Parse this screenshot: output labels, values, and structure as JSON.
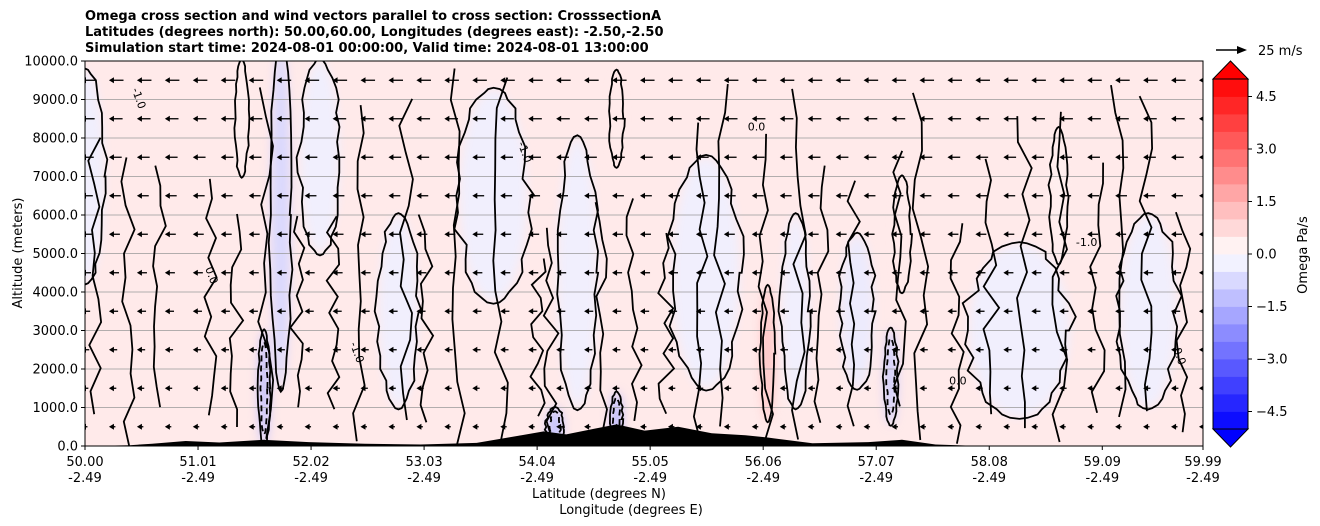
{
  "chart_data": {
    "type": "contour",
    "title_lines": [
      "Omega cross section and wind vectors parallel to cross section: CrosssectionA",
      "Latitudes (degrees north): 50.00,60.00, Longitudes (degrees east): -2.50,-2.50",
      "Simulation start time: 2024-08-01 00:00:00, Valid time: 2024-08-01 13:00:00"
    ],
    "xlabel_lat": "Latitude (degrees N)",
    "xlabel_lon": "Longitude (degrees E)",
    "ylabel": "Altitude (meters)",
    "xlim": [
      50.0,
      59.99
    ],
    "ylim": [
      0,
      10000
    ],
    "x_ticks": [
      {
        "lat": "50.00",
        "lon": "-2.49"
      },
      {
        "lat": "51.01",
        "lon": "-2.49"
      },
      {
        "lat": "52.02",
        "lon": "-2.49"
      },
      {
        "lat": "53.03",
        "lon": "-2.49"
      },
      {
        "lat": "54.04",
        "lon": "-2.49"
      },
      {
        "lat": "55.05",
        "lon": "-2.49"
      },
      {
        "lat": "56.06",
        "lon": "-2.49"
      },
      {
        "lat": "57.07",
        "lon": "-2.49"
      },
      {
        "lat": "58.08",
        "lon": "-2.49"
      },
      {
        "lat": "59.09",
        "lon": "-2.49"
      },
      {
        "lat": "59.99",
        "lon": "-2.49"
      }
    ],
    "y_ticks": [
      "0.0",
      "1000.0",
      "2000.0",
      "3000.0",
      "4000.0",
      "5000.0",
      "6000.0",
      "7000.0",
      "8000.0",
      "9000.0",
      "10000.0"
    ],
    "y_grid": [
      0,
      1000,
      2000,
      3000,
      4000,
      5000,
      6000,
      7000,
      8000,
      9000,
      10000
    ],
    "colorbar": {
      "label": "Omega Pa/s",
      "range": [
        -5.0,
        5.0
      ],
      "levels": 20,
      "tick_values": [
        -4.5,
        -3.0,
        -1.5,
        0.0,
        1.5,
        3.0,
        4.5
      ],
      "tick_labels": [
        "−4.5",
        "−3.0",
        "−1.5",
        "0.0",
        "1.5",
        "3.0",
        "4.5"
      ],
      "extend": "both",
      "low_color": "#0000ff",
      "mid_color": "#ffffff",
      "high_color": "#ff0000"
    },
    "quiver_key": {
      "value": 25,
      "label": "25 m/s"
    },
    "contour_labels": [
      "0.0",
      "-1.0",
      "-1.0",
      "0.0"
    ],
    "shaded_blobs": [
      {
        "lat": 50.0,
        "alt": 7000,
        "w_deg": 0.35,
        "h_m": 5500,
        "omega": -0.3
      },
      {
        "lat": 51.75,
        "alt": 6000,
        "w_deg": 0.18,
        "h_m": 9000,
        "omega": -0.8
      },
      {
        "lat": 52.1,
        "alt": 7500,
        "w_deg": 0.35,
        "h_m": 5000,
        "omega": -0.3
      },
      {
        "lat": 52.8,
        "alt": 3500,
        "w_deg": 0.35,
        "h_m": 5000,
        "omega": -0.3
      },
      {
        "lat": 53.65,
        "alt": 6500,
        "w_deg": 0.6,
        "h_m": 5500,
        "omega": -0.3
      },
      {
        "lat": 54.4,
        "alt": 4500,
        "w_deg": 0.35,
        "h_m": 7000,
        "omega": -0.3
      },
      {
        "lat": 55.55,
        "alt": 4500,
        "w_deg": 0.6,
        "h_m": 6000,
        "omega": -0.3
      },
      {
        "lat": 56.35,
        "alt": 3500,
        "w_deg": 0.25,
        "h_m": 5000,
        "omega": -0.3
      },
      {
        "lat": 56.9,
        "alt": 3500,
        "w_deg": 0.3,
        "h_m": 4000,
        "omega": -0.4
      },
      {
        "lat": 58.35,
        "alt": 3000,
        "w_deg": 0.9,
        "h_m": 4500,
        "omega": -0.3
      },
      {
        "lat": 59.5,
        "alt": 3500,
        "w_deg": 0.5,
        "h_m": 5000,
        "omega": -0.3
      },
      {
        "lat": 51.4,
        "alt": 8500,
        "w_deg": 0.12,
        "h_m": 3000,
        "omega": 0.3
      },
      {
        "lat": 54.75,
        "alt": 8500,
        "w_deg": 0.12,
        "h_m": 2500,
        "omega": 0.4
      },
      {
        "lat": 56.1,
        "alt": 2400,
        "w_deg": 0.12,
        "h_m": 3500,
        "omega": 1.2
      },
      {
        "lat": 57.3,
        "alt": 5500,
        "w_deg": 0.15,
        "h_m": 3000,
        "omega": 0.4
      },
      {
        "lat": 58.7,
        "alt": 6500,
        "w_deg": 0.15,
        "h_m": 3500,
        "omega": 0.3
      },
      {
        "lat": 51.6,
        "alt": 1500,
        "w_deg": 0.1,
        "h_m": 3000,
        "omega": -1.3
      },
      {
        "lat": 54.2,
        "alt": 500,
        "w_deg": 0.15,
        "h_m": 1000,
        "omega": -1.2
      },
      {
        "lat": 54.75,
        "alt": 700,
        "w_deg": 0.1,
        "h_m": 1400,
        "omega": -1.5
      },
      {
        "lat": 57.2,
        "alt": 1800,
        "w_deg": 0.12,
        "h_m": 2500,
        "omega": -1.0
      }
    ],
    "terrain": [
      {
        "lat": 50.0,
        "alt": 0
      },
      {
        "lat": 50.4,
        "alt": 20
      },
      {
        "lat": 50.6,
        "alt": 60
      },
      {
        "lat": 50.9,
        "alt": 130
      },
      {
        "lat": 51.2,
        "alt": 90
      },
      {
        "lat": 51.6,
        "alt": 160
      },
      {
        "lat": 52.0,
        "alt": 100
      },
      {
        "lat": 52.5,
        "alt": 60
      },
      {
        "lat": 53.0,
        "alt": 40
      },
      {
        "lat": 53.5,
        "alt": 80
      },
      {
        "lat": 53.9,
        "alt": 280
      },
      {
        "lat": 54.1,
        "alt": 380
      },
      {
        "lat": 54.3,
        "alt": 300
      },
      {
        "lat": 54.55,
        "alt": 450
      },
      {
        "lat": 54.75,
        "alt": 560
      },
      {
        "lat": 55.0,
        "alt": 400
      },
      {
        "lat": 55.3,
        "alt": 500
      },
      {
        "lat": 55.6,
        "alt": 330
      },
      {
        "lat": 55.9,
        "alt": 280
      },
      {
        "lat": 56.1,
        "alt": 220
      },
      {
        "lat": 56.5,
        "alt": 70
      },
      {
        "lat": 57.0,
        "alt": 100
      },
      {
        "lat": 57.3,
        "alt": 160
      },
      {
        "lat": 57.6,
        "alt": 40
      },
      {
        "lat": 58.0,
        "alt": 0
      },
      {
        "lat": 59.99,
        "alt": 0
      }
    ]
  }
}
